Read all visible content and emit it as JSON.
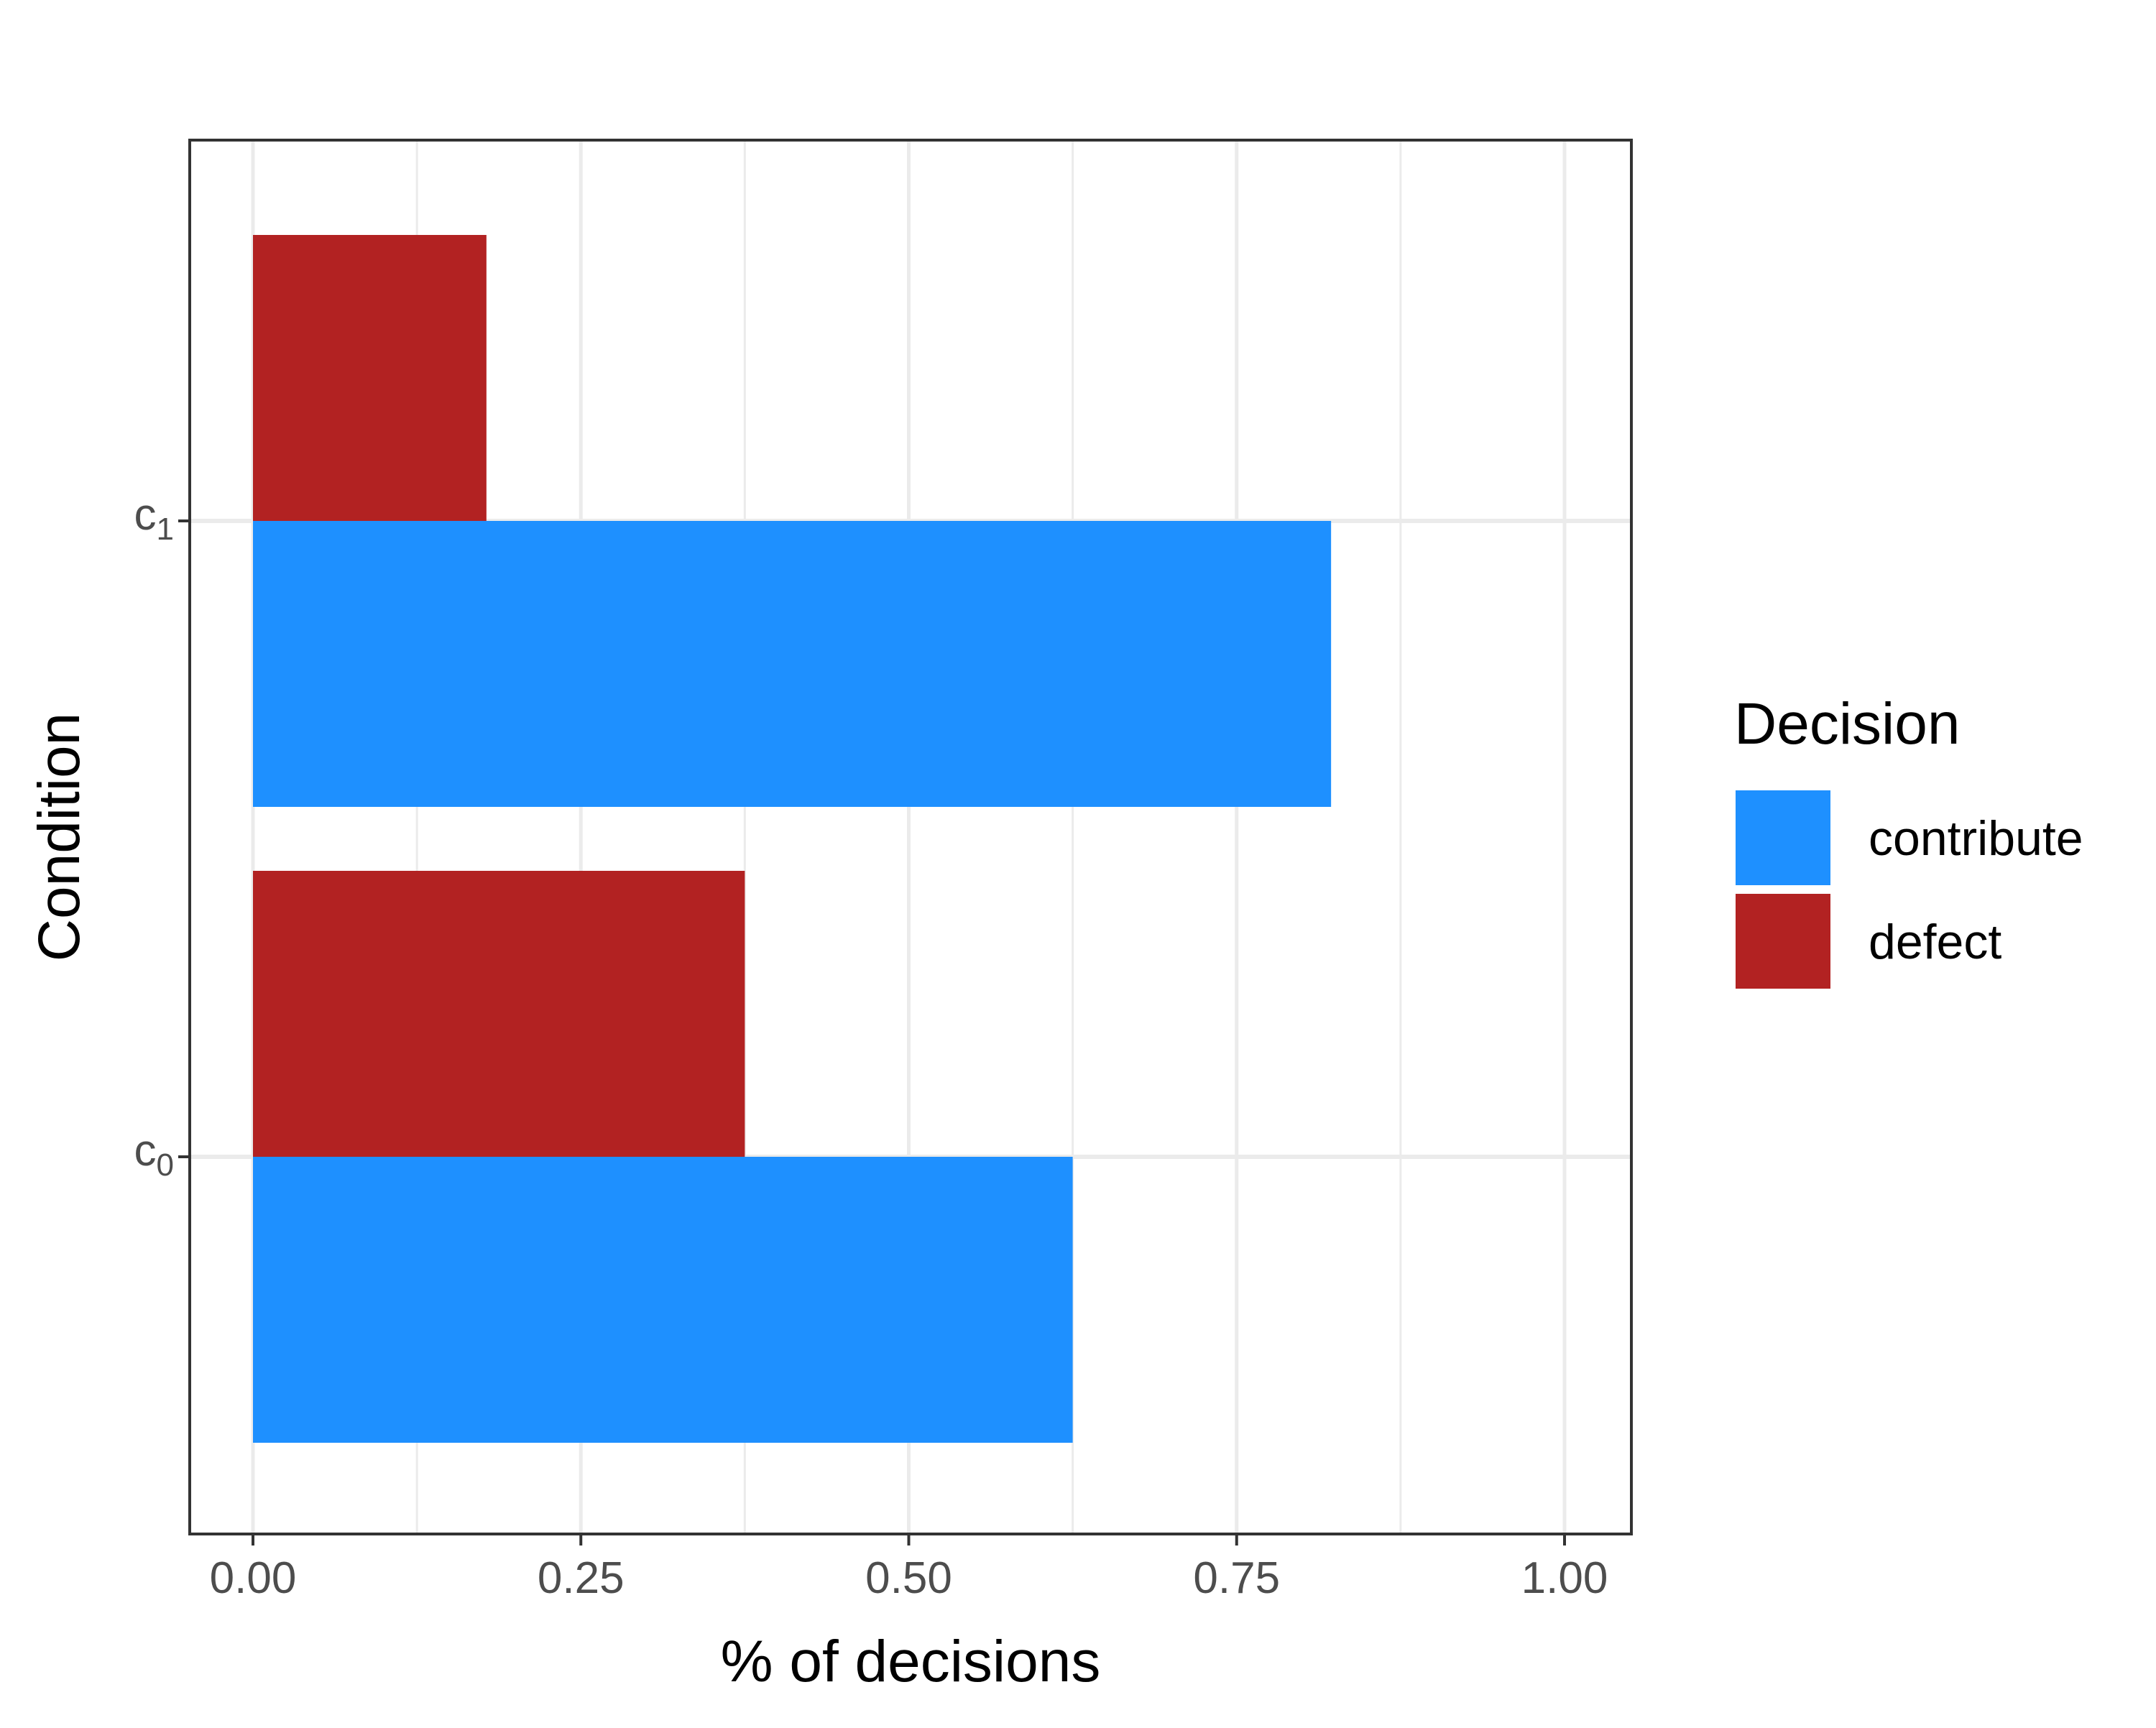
{
  "chart_data": {
    "type": "bar",
    "orientation": "horizontal",
    "categories": [
      "c0",
      "c1"
    ],
    "category_labels": [
      {
        "base": "c",
        "sub": "0"
      },
      {
        "base": "c",
        "sub": "1"
      }
    ],
    "series": [
      {
        "name": "contribute",
        "values": [
          0.625,
          0.822
        ],
        "color": "#1E90FF"
      },
      {
        "name": "defect",
        "values": [
          0.375,
          0.178
        ],
        "color": "#B22222"
      }
    ],
    "xlabel": "% of decisions",
    "ylabel": "Condition",
    "xlim": [
      0,
      1
    ],
    "x_ticks": [
      "0.00",
      "0.25",
      "0.50",
      "0.75",
      "1.00"
    ],
    "grid": true,
    "legend": {
      "title": "Decision",
      "position": "right"
    }
  }
}
